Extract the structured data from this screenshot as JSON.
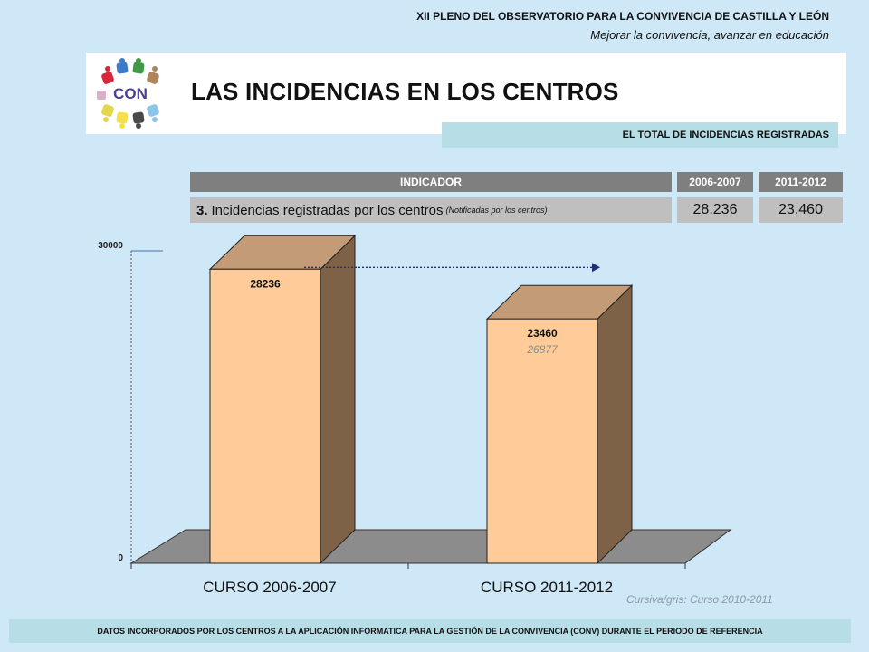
{
  "header": {
    "title": "XII PLENO DEL OBSERVATORIO PARA LA CONVIVENCIA DE CASTILLA Y LEÓN",
    "subtitle": "Mejorar la convivencia, avanzar en educación"
  },
  "banner": {
    "logo_text": "CON",
    "page_title": "LAS INCIDENCIAS EN LOS CENTROS",
    "section": "EL TOTAL DE INCIDENCIAS REGISTRADAS"
  },
  "table": {
    "headers": [
      "INDICADOR",
      "2006-2007",
      "2011-2012"
    ],
    "row": {
      "number": "3.",
      "label": "Incidencias registradas por los centros",
      "note": "(Notificadas  por los centros)",
      "values": [
        "28.236",
        "23.460"
      ]
    }
  },
  "chart_data": {
    "type": "bar",
    "categories": [
      "CURSO 2006-2007",
      "CURSO 2011-2012"
    ],
    "values": [
      28236,
      23460
    ],
    "data_labels": [
      "28236",
      "23460"
    ],
    "secondary_values": [
      null,
      26877
    ],
    "secondary_labels": [
      "",
      "26877"
    ],
    "ylim": [
      0,
      30000
    ],
    "ytick_labels": [
      "0",
      "30000"
    ],
    "style": "3d-column",
    "colors": {
      "bar_front": "#ffcc99",
      "bar_top": "#c39b76",
      "bar_side": "#7d6248",
      "floor": "#8c8c8c",
      "arrow": "#1f2d7a",
      "secondary_label": "#8c8c8c"
    }
  },
  "footnote": "Cursiva/gris: Curso 2010-2011",
  "footer": "DATOS INCORPORADOS POR LOS CENTROS A LA APLICACIÓN INFORMATICA PARA LA GESTIÓN  DE LA CONVIVENCIA (CONV) DURANTE  EL PERIODO DE REFERENCIA"
}
